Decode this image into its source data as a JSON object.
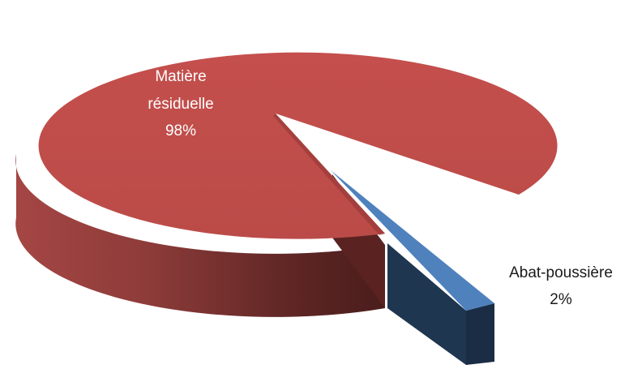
{
  "chart_data": {
    "type": "pie",
    "style": "3d-exploded",
    "slices": [
      {
        "label_lines": [
          "Matière",
          "résiduelle"
        ],
        "percent_label": "98%",
        "value": 98,
        "color": "#c0504d"
      },
      {
        "label_lines": [
          "Abat-poussière"
        ],
        "percent_label": "2%",
        "value": 2,
        "color": "#4f81bd"
      }
    ],
    "title": "",
    "legend": "none",
    "data_labels": "category-and-percent"
  }
}
